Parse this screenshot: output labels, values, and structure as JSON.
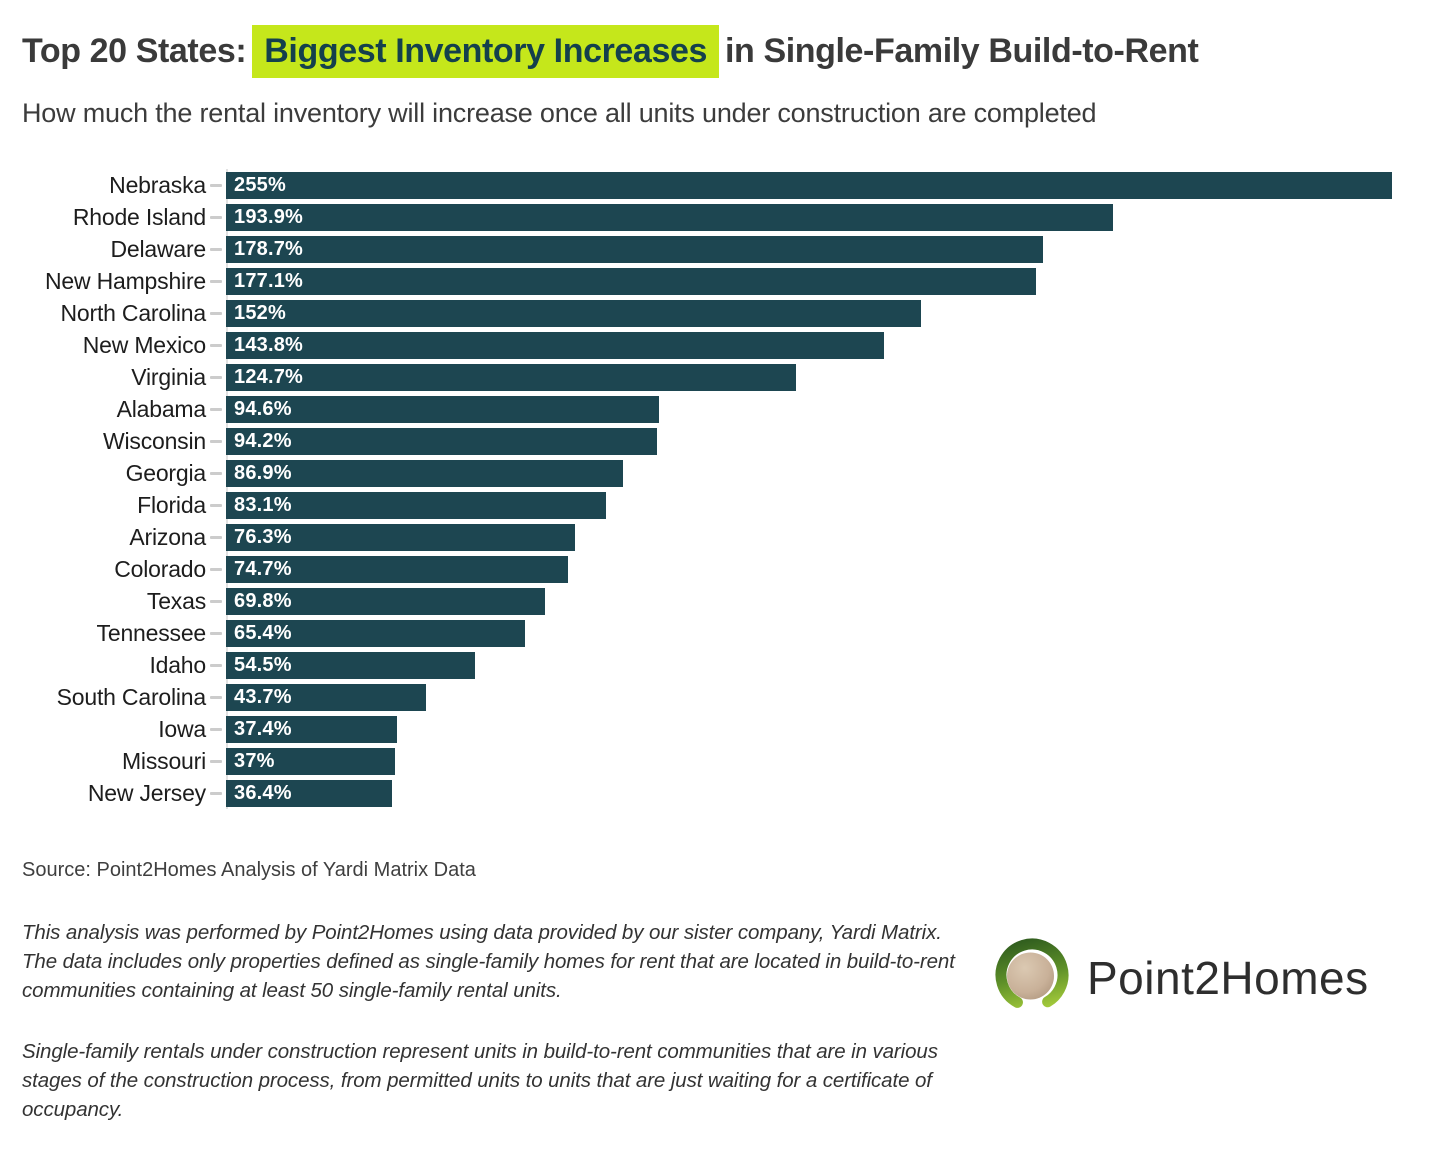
{
  "header": {
    "title_prefix": "Top 20 States:",
    "title_highlight": "Biggest Inventory Increases",
    "title_suffix": "in Single-Family Build-to-Rent",
    "subtitle": "How much the rental inventory will increase once all units under construction are completed"
  },
  "chart_data": {
    "type": "bar",
    "orientation": "horizontal",
    "categories": [
      "Nebraska",
      "Rhode Island",
      "Delaware",
      "New Hampshire",
      "North Carolina",
      "New Mexico",
      "Virginia",
      "Alabama",
      "Wisconsin",
      "Georgia",
      "Florida",
      "Arizona",
      "Colorado",
      "Texas",
      "Tennessee",
      "Idaho",
      "South Carolina",
      "Iowa",
      "Missouri",
      "New Jersey"
    ],
    "values": [
      255,
      193.9,
      178.7,
      177.1,
      152,
      143.8,
      124.7,
      94.6,
      94.2,
      86.9,
      83.1,
      76.3,
      74.7,
      69.8,
      65.4,
      54.5,
      43.7,
      37.4,
      37,
      36.4
    ],
    "value_labels": [
      "255%",
      "193.9%",
      "178.7%",
      "177.1%",
      "152%",
      "143.8%",
      "124.7%",
      "94.6%",
      "94.2%",
      "86.9%",
      "83.1%",
      "76.3%",
      "74.7%",
      "69.8%",
      "65.4%",
      "54.5%",
      "43.7%",
      "37.4%",
      "37%",
      "36.4%"
    ],
    "xlim": [
      0,
      255
    ],
    "grid": false,
    "legend": false,
    "value_labels_position": "inside-left"
  },
  "footer": {
    "source": "Source: Point2Homes Analysis of Yardi Matrix Data",
    "note_1": "This analysis was performed by Point2Homes using data provided by our sister company, Yardi Matrix. The data includes only properties defined as single-family homes for rent that are located in build-to-rent communities containing at least 50 single-family rental units.",
    "note_2": "Single-family rentals under construction represent units in build-to-rent communities that are in various stages of the construction process, from permitted units to units that are just waiting for a certificate of occupancy."
  },
  "logo": {
    "text": "Point2Homes"
  },
  "colors": {
    "bar": "#1d4651",
    "value_label": "#ffffff",
    "highlight_bg": "#c5e71b",
    "highlight_text": "#14404c",
    "title_text": "#3a3a3a",
    "logo_green_dark": "#2f5c1e",
    "logo_green_bright": "#a8ce3c",
    "logo_inner_tan": "#c9b199"
  }
}
